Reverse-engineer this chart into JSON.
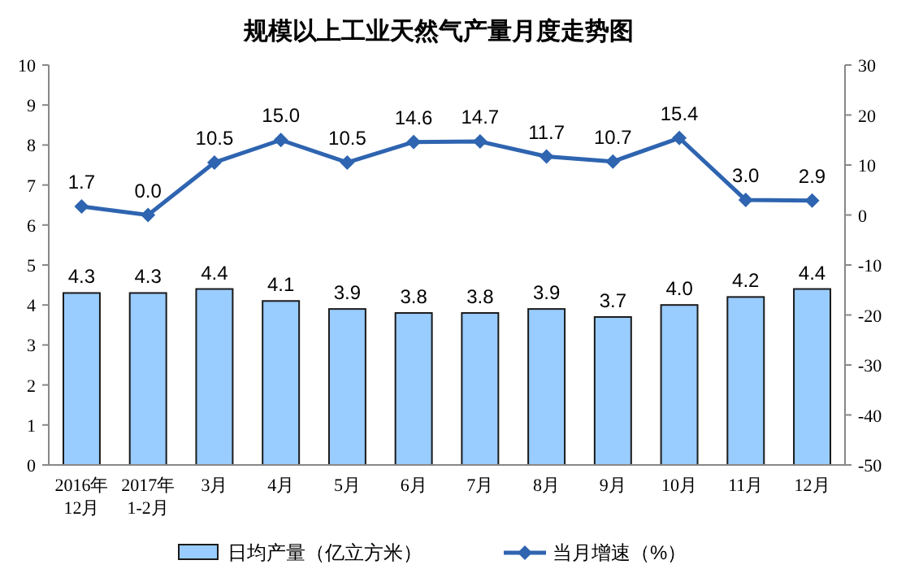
{
  "chart_data": {
    "type": "bar",
    "title": "规模以上工业天然气产量月度走势图",
    "categories": [
      "2016年\n12月",
      "2017年\n1-2月",
      "3月",
      "4月",
      "5月",
      "6月",
      "7月",
      "8月",
      "9月",
      "10月",
      "11月",
      "12月"
    ],
    "series": [
      {
        "name": "日均产量（亿立方米）",
        "color": "#99ccff",
        "values": [
          4.3,
          4.3,
          4.4,
          4.1,
          3.9,
          3.8,
          3.8,
          3.9,
          3.7,
          4.0,
          4.2,
          4.4
        ],
        "value_labels": [
          "4.3",
          "4.3",
          "4.4",
          "4.1",
          "3.9",
          "3.8",
          "3.8",
          "3.9",
          "3.7",
          "4.0",
          "4.2",
          "4.4"
        ]
      },
      {
        "name": "当月增速（%）",
        "type": "line",
        "axis": "y2",
        "color": "#2e64b0",
        "values": [
          1.7,
          0.0,
          10.5,
          15.0,
          10.5,
          14.6,
          14.7,
          11.7,
          10.7,
          15.4,
          3.0,
          2.9
        ],
        "value_labels": [
          "1.7",
          "0.0",
          "10.5",
          "15.0",
          "10.5",
          "14.6",
          "14.7",
          "11.7",
          "10.7",
          "15.4",
          "3.0",
          "2.9"
        ]
      }
    ],
    "ylim": [
      0,
      10
    ],
    "yticks": [
      0,
      1,
      2,
      3,
      4,
      5,
      6,
      7,
      8,
      9,
      10
    ],
    "y2lim": [
      -50,
      30
    ],
    "y2ticks": [
      -50,
      -40,
      -30,
      -20,
      -10,
      0,
      10,
      20,
      30
    ],
    "marker": "diamond",
    "legend": "bottom",
    "grid": false
  }
}
